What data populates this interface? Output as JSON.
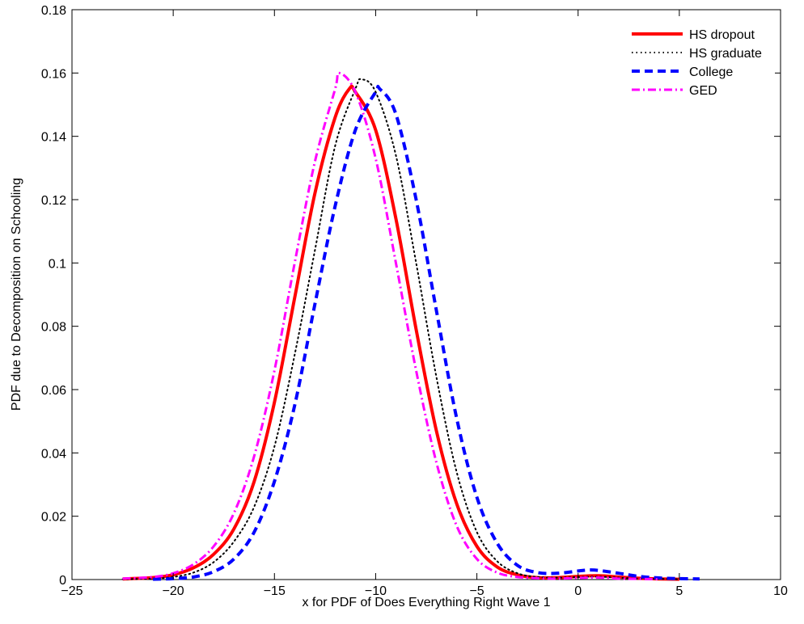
{
  "chart_data": {
    "type": "line",
    "xlabel": "x for PDF of Does Everything Right Wave 1",
    "ylabel": "PDF due to Decomposition on Schooling",
    "xlim": [
      -25,
      10
    ],
    "ylim": [
      0,
      0.18
    ],
    "xticks": [
      -25,
      -20,
      -15,
      -10,
      -5,
      0,
      5,
      10
    ],
    "yticks": [
      0,
      0.02,
      0.04,
      0.06,
      0.08,
      0.1,
      0.12,
      0.14,
      0.16,
      0.18
    ],
    "xtick_labels": [
      "−25",
      "−20",
      "−15",
      "−10",
      "−5",
      "0",
      "5",
      "10"
    ],
    "ytick_labels": [
      "0",
      "0.02",
      "0.04",
      "0.06",
      "0.08",
      "0.1",
      "0.12",
      "0.14",
      "0.16",
      "0.18"
    ],
    "grid": false,
    "legend_position": "top-right",
    "series": [
      {
        "name": "HS dropout",
        "color": "#ff0000",
        "style": "solid",
        "points": [
          [
            -22.5,
            0.0002
          ],
          [
            -21,
            0.0006
          ],
          [
            -20,
            0.0015
          ],
          [
            -19,
            0.0037
          ],
          [
            -18,
            0.008
          ],
          [
            -17,
            0.016
          ],
          [
            -16,
            0.031
          ],
          [
            -15,
            0.056
          ],
          [
            -14,
            0.089
          ],
          [
            -13,
            0.122
          ],
          [
            -12,
            0.146
          ],
          [
            -11.3,
            0.155
          ],
          [
            -11,
            0.154
          ],
          [
            -10,
            0.142
          ],
          [
            -9,
            0.114
          ],
          [
            -8,
            0.079
          ],
          [
            -7,
            0.047
          ],
          [
            -6,
            0.024
          ],
          [
            -5,
            0.0105
          ],
          [
            -4,
            0.004
          ],
          [
            -3,
            0.0015
          ],
          [
            -2,
            0.0006
          ],
          [
            -1,
            0.0006
          ],
          [
            0,
            0.001
          ],
          [
            1,
            0.0012
          ],
          [
            2,
            0.0008
          ],
          [
            3,
            0.0004
          ],
          [
            4,
            0.0002
          ],
          [
            5,
            0.0001
          ]
        ]
      },
      {
        "name": "HS graduate",
        "color": "#000000",
        "style": "dotted",
        "points": [
          [
            -22.5,
            0.0001
          ],
          [
            -21,
            0.0003
          ],
          [
            -20,
            0.0008
          ],
          [
            -19,
            0.0022
          ],
          [
            -18,
            0.0055
          ],
          [
            -17,
            0.012
          ],
          [
            -16,
            0.023
          ],
          [
            -15,
            0.042
          ],
          [
            -14,
            0.071
          ],
          [
            -13,
            0.104
          ],
          [
            -12,
            0.137
          ],
          [
            -11,
            0.155
          ],
          [
            -10.7,
            0.158
          ],
          [
            -10,
            0.154
          ],
          [
            -9,
            0.134
          ],
          [
            -8,
            0.1
          ],
          [
            -7,
            0.064
          ],
          [
            -6,
            0.034
          ],
          [
            -5,
            0.015
          ],
          [
            -4,
            0.0058
          ],
          [
            -3,
            0.002
          ],
          [
            -2,
            0.0008
          ],
          [
            -1,
            0.0006
          ],
          [
            0,
            0.0008
          ],
          [
            1,
            0.0009
          ],
          [
            2,
            0.0006
          ],
          [
            3,
            0.0003
          ],
          [
            4,
            0.0002
          ],
          [
            5,
            0.0001
          ]
        ]
      },
      {
        "name": "College",
        "color": "#0000ff",
        "style": "dashed",
        "points": [
          [
            -21,
            0.0001
          ],
          [
            -20,
            0.0003
          ],
          [
            -19,
            0.0008
          ],
          [
            -18,
            0.0025
          ],
          [
            -17,
            0.0065
          ],
          [
            -16,
            0.015
          ],
          [
            -15,
            0.031
          ],
          [
            -14,
            0.055
          ],
          [
            -13,
            0.087
          ],
          [
            -12,
            0.118
          ],
          [
            -11,
            0.142
          ],
          [
            -10,
            0.154
          ],
          [
            -9.8,
            0.155
          ],
          [
            -9,
            0.147
          ],
          [
            -8,
            0.12
          ],
          [
            -7,
            0.085
          ],
          [
            -6,
            0.051
          ],
          [
            -5,
            0.026
          ],
          [
            -4,
            0.0115
          ],
          [
            -3,
            0.0045
          ],
          [
            -2,
            0.0022
          ],
          [
            -1,
            0.002
          ],
          [
            0,
            0.0027
          ],
          [
            0.5,
            0.003
          ],
          [
            1,
            0.0029
          ],
          [
            2,
            0.002
          ],
          [
            3,
            0.001
          ],
          [
            4,
            0.0005
          ],
          [
            5,
            0.0003
          ],
          [
            6,
            0.0002
          ]
        ]
      },
      {
        "name": "GED",
        "color": "#ff00ff",
        "style": "dashdot",
        "points": [
          [
            -22.5,
            0.0003
          ],
          [
            -21,
            0.0008
          ],
          [
            -20,
            0.002
          ],
          [
            -19,
            0.0048
          ],
          [
            -18,
            0.0105
          ],
          [
            -17,
            0.021
          ],
          [
            -16,
            0.039
          ],
          [
            -15,
            0.066
          ],
          [
            -14,
            0.1
          ],
          [
            -13,
            0.132
          ],
          [
            -12,
            0.155
          ],
          [
            -11.8,
            0.16
          ],
          [
            -11,
            0.154
          ],
          [
            -10,
            0.133
          ],
          [
            -9,
            0.1
          ],
          [
            -8,
            0.066
          ],
          [
            -7,
            0.037
          ],
          [
            -6,
            0.017
          ],
          [
            -5,
            0.0065
          ],
          [
            -4,
            0.0022
          ],
          [
            -3,
            0.0008
          ],
          [
            -2,
            0.0004
          ],
          [
            -1,
            0.0003
          ],
          [
            0,
            0.0005
          ],
          [
            1,
            0.0006
          ],
          [
            2,
            0.0003
          ],
          [
            3,
            0.0002
          ],
          [
            4,
            0.0001
          ]
        ]
      }
    ]
  }
}
